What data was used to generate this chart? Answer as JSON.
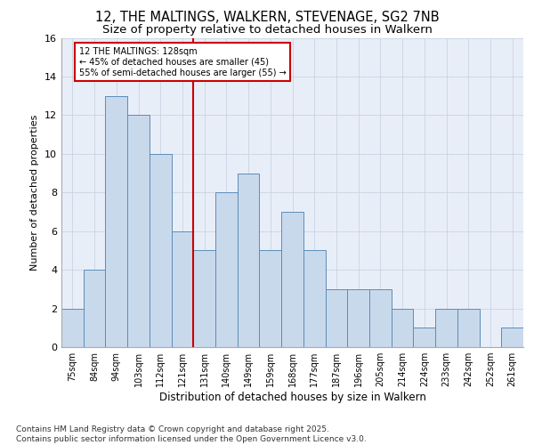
{
  "title_line1": "12, THE MALTINGS, WALKERN, STEVENAGE, SG2 7NB",
  "title_line2": "Size of property relative to detached houses in Walkern",
  "xlabel": "Distribution of detached houses by size in Walkern",
  "ylabel": "Number of detached properties",
  "categories": [
    "75sqm",
    "84sqm",
    "94sqm",
    "103sqm",
    "112sqm",
    "121sqm",
    "131sqm",
    "140sqm",
    "149sqm",
    "159sqm",
    "168sqm",
    "177sqm",
    "187sqm",
    "196sqm",
    "205sqm",
    "214sqm",
    "224sqm",
    "233sqm",
    "242sqm",
    "252sqm",
    "261sqm"
  ],
  "values": [
    2,
    4,
    13,
    12,
    10,
    6,
    5,
    8,
    9,
    5,
    7,
    5,
    3,
    3,
    3,
    2,
    1,
    2,
    2,
    0,
    1
  ],
  "bar_color": "#c9d9ec",
  "bar_edge_color": "#5b8db8",
  "red_line_index": 6,
  "annotation_text": "12 THE MALTINGS: 128sqm\n← 45% of detached houses are smaller (45)\n55% of semi-detached houses are larger (55) →",
  "annotation_box_color": "#ffffff",
  "annotation_box_edge": "#cc0000",
  "red_line_color": "#cc0000",
  "ylim": [
    0,
    16
  ],
  "yticks": [
    0,
    2,
    4,
    6,
    8,
    10,
    12,
    14,
    16
  ],
  "grid_color": "#c8d4e3",
  "bg_color": "#e8eef8",
  "footer_text": "Contains HM Land Registry data © Crown copyright and database right 2025.\nContains public sector information licensed under the Open Government Licence v3.0.",
  "title_fontsize": 10.5,
  "subtitle_fontsize": 9.5,
  "xlabel_fontsize": 8.5,
  "ylabel_fontsize": 8,
  "tick_fontsize": 7,
  "footer_fontsize": 6.5
}
